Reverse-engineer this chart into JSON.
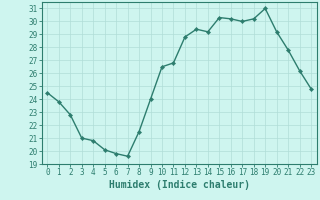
{
  "x": [
    0,
    1,
    2,
    3,
    4,
    5,
    6,
    7,
    8,
    9,
    10,
    11,
    12,
    13,
    14,
    15,
    16,
    17,
    18,
    19,
    20,
    21,
    22,
    23
  ],
  "y": [
    24.5,
    23.8,
    22.8,
    21.0,
    20.8,
    20.1,
    19.8,
    19.6,
    21.5,
    24.0,
    26.5,
    26.8,
    28.8,
    29.4,
    29.2,
    30.3,
    30.2,
    30.0,
    30.2,
    31.0,
    29.2,
    27.8,
    26.2,
    24.8
  ],
  "line_color": "#2d7d6e",
  "marker": "D",
  "marker_size": 2.2,
  "line_width": 1.0,
  "bg_color": "#cef5ef",
  "grid_color": "#b0ddd8",
  "xlabel": "Humidex (Indice chaleur)",
  "xlim": [
    -0.5,
    23.5
  ],
  "ylim": [
    19,
    31.5
  ],
  "yticks": [
    19,
    20,
    21,
    22,
    23,
    24,
    25,
    26,
    27,
    28,
    29,
    30,
    31
  ],
  "xticks": [
    0,
    1,
    2,
    3,
    4,
    5,
    6,
    7,
    8,
    9,
    10,
    11,
    12,
    13,
    14,
    15,
    16,
    17,
    18,
    19,
    20,
    21,
    22,
    23
  ],
  "tick_label_fontsize": 5.5,
  "xlabel_fontsize": 7.0,
  "axis_color": "#2d7d6e",
  "spine_color": "#2d7d6e"
}
